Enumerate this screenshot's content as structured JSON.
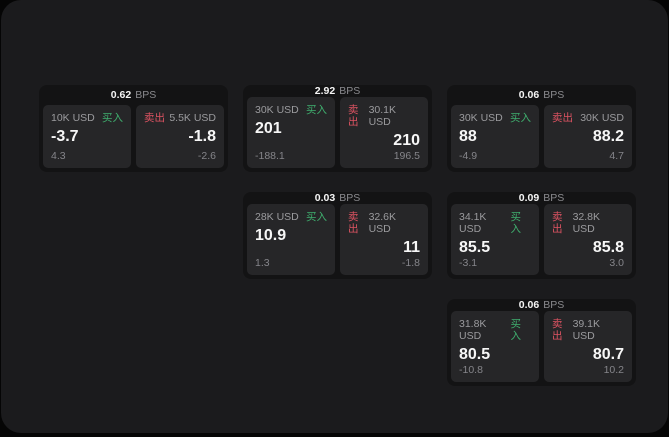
{
  "labels": {
    "bps_unit": "BPS",
    "buy": "买入",
    "sell": "卖出"
  },
  "colors": {
    "buy_accent": "#3fae6e",
    "sell_accent": "#de5362",
    "panel_background": "#1b1b1d",
    "card_background": "#131314",
    "subcard_background": "#262628"
  },
  "cards": [
    {
      "bps": "0.62",
      "buy": {
        "amount": "10K USD",
        "value": "-3.7",
        "change": "4.3"
      },
      "sell": {
        "amount": "5.5K USD",
        "value": "-1.8",
        "change": "-2.6"
      }
    },
    {
      "bps": "2.92",
      "buy": {
        "amount": "30K USD",
        "value": "201",
        "change": "-188.1"
      },
      "sell": {
        "amount": "30.1K USD",
        "value": "210",
        "change": "196.5"
      }
    },
    {
      "bps": "0.06",
      "buy": {
        "amount": "30K USD",
        "value": "88",
        "change": "-4.9"
      },
      "sell": {
        "amount": "30K USD",
        "value": "88.2",
        "change": "4.7"
      }
    },
    {
      "bps": "0.03",
      "buy": {
        "amount": "28K USD",
        "value": "10.9",
        "change": "1.3"
      },
      "sell": {
        "amount": "32.6K USD",
        "value": "11",
        "change": "-1.8"
      }
    },
    {
      "bps": "0.09",
      "buy": {
        "amount": "34.1K USD",
        "value": "85.5",
        "change": "-3.1"
      },
      "sell": {
        "amount": "32.8K USD",
        "value": "85.8",
        "change": "3.0"
      }
    },
    {
      "bps": "0.06",
      "buy": {
        "amount": "31.8K USD",
        "value": "80.5",
        "change": "-10.8"
      },
      "sell": {
        "amount": "39.1K USD",
        "value": "80.7",
        "change": "10.2"
      }
    }
  ]
}
